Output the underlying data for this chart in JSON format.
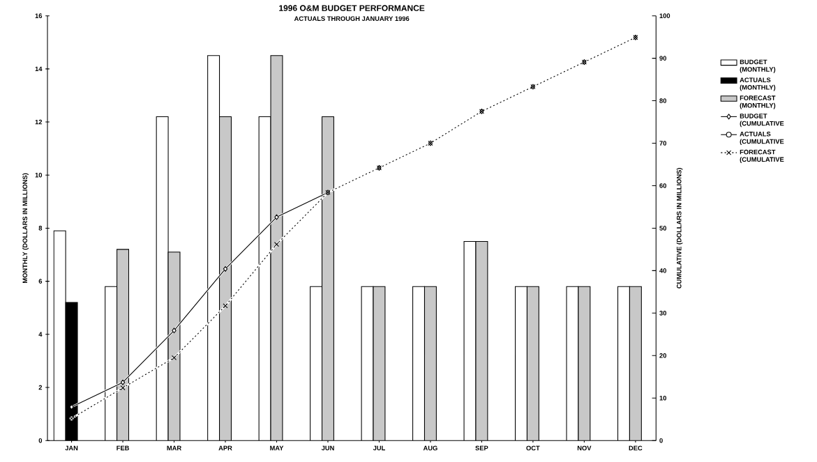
{
  "chart_data": {
    "type": "bar",
    "title": "1996 O&M BUDGET PERFORMANCE",
    "subtitle": "ACTUALS THROUGH JANUARY 1996",
    "ylabel": "MONTHLY (DOLLARS IN MILLIONS)",
    "y2label": "CUMULATIVE (DOLLARS IN MILLIONS)",
    "categories": [
      "JAN",
      "FEB",
      "MAR",
      "APR",
      "MAY",
      "JUN",
      "JUL",
      "AUG",
      "SEP",
      "OCT",
      "NOV",
      "DEC"
    ],
    "series": [
      {
        "name": "BUDGET (MONTHLY)",
        "color": "#ffffff",
        "values": [
          7.9,
          5.8,
          12.2,
          14.5,
          12.2,
          5.8,
          5.8,
          5.8,
          7.5,
          5.8,
          5.8,
          5.8
        ]
      },
      {
        "name": "ACTUALS (MONTHLY)",
        "color": "#000000",
        "values": [
          5.2,
          null,
          null,
          null,
          null,
          null,
          null,
          null,
          null,
          null,
          null,
          null
        ]
      },
      {
        "name": "FORECAST (MONTHLY)",
        "color": "#c8c8c8",
        "values": [
          null,
          7.2,
          7.1,
          12.2,
          14.5,
          12.2,
          5.8,
          5.8,
          7.5,
          5.8,
          5.8,
          5.8
        ]
      },
      {
        "name": "BUDGET (CUMULATIVE",
        "type": "line",
        "axis": "y2",
        "color": "#000000",
        "marker": "diamond",
        "line_style": "solid",
        "values": [
          7.9,
          13.7,
          25.9,
          40.4,
          52.6,
          58.4,
          64.2,
          70.0,
          77.5,
          83.3,
          89.1,
          94.9
        ]
      },
      {
        "name": "ACTUALS (CUMULATIVE",
        "type": "line",
        "axis": "y2",
        "color": "#000000",
        "marker": "circle",
        "line_style": "solid",
        "values": [
          5.2,
          null,
          null,
          null,
          null,
          null,
          null,
          null,
          null,
          null,
          null,
          null
        ]
      },
      {
        "name": "FORECAST (CUMULATIVE",
        "type": "line",
        "axis": "y2",
        "color": "#000000",
        "marker": "cross",
        "line_style": "dotted",
        "values": [
          5.2,
          12.4,
          19.5,
          31.7,
          46.2,
          58.4,
          64.2,
          70.0,
          77.5,
          83.3,
          89.1,
          94.9
        ]
      }
    ],
    "ylim": [
      0,
      16
    ],
    "yticks": [
      0,
      2,
      4,
      6,
      8,
      10,
      12,
      14,
      16
    ],
    "y2lim": [
      0,
      100
    ],
    "y2ticks": [
      0,
      10,
      20,
      30,
      40,
      50,
      60,
      70,
      80,
      90,
      100
    ],
    "legend": "right"
  }
}
